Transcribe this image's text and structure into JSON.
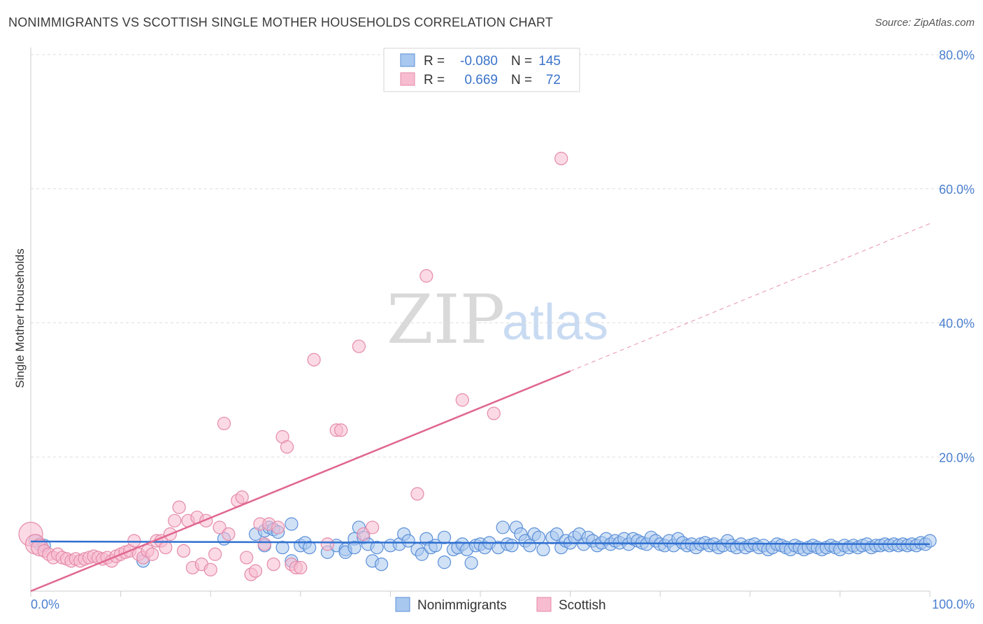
{
  "title": "NONIMMIGRANTS VS SCOTTISH SINGLE MOTHER HOUSEHOLDS CORRELATION CHART",
  "source": "Source: ZipAtlas.com",
  "watermark": {
    "zip": "ZIP",
    "atlas": "atlas"
  },
  "legend": {
    "rows": [
      {
        "r_label": "R =",
        "r_value": "-0.080",
        "n_label": "N =",
        "n_value": "145"
      },
      {
        "r_label": "R =",
        "r_value": "0.669",
        "n_label": "N =",
        "n_value": "72"
      }
    ]
  },
  "colors": {
    "blue_fill": "#a9c8ef",
    "blue_stroke": "#5b8fd8",
    "blue_line": "#2f6fd0",
    "pink_fill": "#f7bcd0",
    "pink_stroke": "#e58aa8",
    "pink_line": "#e0678f",
    "grid": "#dddddd",
    "axis": "#cccccc"
  },
  "chart_data": {
    "type": "scatter",
    "xlabel": "",
    "ylabel": "Single Mother Households",
    "xlim": [
      0,
      100
    ],
    "ylim": [
      0,
      80
    ],
    "x_tick_labels": [
      "0.0%",
      "100.0%"
    ],
    "y_tick_labels": [
      "20.0%",
      "40.0%",
      "60.0%",
      "80.0%"
    ],
    "y_tick_values": [
      20,
      40,
      60,
      80
    ],
    "series": [
      {
        "name": "Nonimmigrants",
        "r": -0.08,
        "n": 145,
        "trend": {
          "x0": 0,
          "y0": 7.4,
          "x1": 100,
          "y1": 7.0
        },
        "points": [
          [
            0.5,
            7.5
          ],
          [
            1,
            7.0
          ],
          [
            1.5,
            6.8
          ],
          [
            12.5,
            4.5
          ],
          [
            21.5,
            7.8
          ],
          [
            25,
            8.5
          ],
          [
            26,
            9.0
          ],
          [
            26.5,
            9.5
          ],
          [
            27,
            9.2
          ],
          [
            27.5,
            8.8
          ],
          [
            26,
            6.8
          ],
          [
            28,
            6.5
          ],
          [
            29,
            10.0
          ],
          [
            29,
            4.5
          ],
          [
            30,
            6.8
          ],
          [
            30.5,
            7.2
          ],
          [
            31,
            6.5
          ],
          [
            33,
            5.8
          ],
          [
            34,
            6.8
          ],
          [
            35,
            6.2
          ],
          [
            35,
            5.8
          ],
          [
            36,
            7.8
          ],
          [
            36.5,
            9.5
          ],
          [
            37,
            8.0
          ],
          [
            37.5,
            7.0
          ],
          [
            38,
            4.5
          ],
          [
            38.5,
            6.5
          ],
          [
            39,
            4.0
          ],
          [
            40,
            6.8
          ],
          [
            41,
            7.0
          ],
          [
            41.5,
            8.5
          ],
          [
            42,
            7.5
          ],
          [
            43,
            6.2
          ],
          [
            43.5,
            5.5
          ],
          [
            44,
            7.8
          ],
          [
            44.5,
            6.5
          ],
          [
            45,
            6.8
          ],
          [
            46,
            8.0
          ],
          [
            46,
            4.3
          ],
          [
            47,
            6.2
          ],
          [
            47.5,
            6.5
          ],
          [
            48,
            7.0
          ],
          [
            48.5,
            6.2
          ],
          [
            49,
            4.2
          ],
          [
            49.5,
            6.8
          ],
          [
            50,
            7.0
          ],
          [
            50.5,
            6.5
          ],
          [
            51,
            7.2
          ],
          [
            52,
            6.5
          ],
          [
            52.5,
            9.5
          ],
          [
            53,
            7.0
          ],
          [
            53.5,
            6.8
          ],
          [
            54,
            9.5
          ],
          [
            54.5,
            8.5
          ],
          [
            55,
            7.5
          ],
          [
            55.5,
            6.8
          ],
          [
            56,
            8.5
          ],
          [
            56.5,
            8.0
          ],
          [
            57,
            6.2
          ],
          [
            58,
            8.0
          ],
          [
            58.5,
            8.5
          ],
          [
            59,
            6.5
          ],
          [
            59.5,
            7.5
          ],
          [
            60,
            7.2
          ],
          [
            60.5,
            8.0
          ],
          [
            61,
            8.5
          ],
          [
            61.5,
            7.0
          ],
          [
            62,
            8.0
          ],
          [
            62.5,
            7.5
          ],
          [
            63,
            6.8
          ],
          [
            63.5,
            7.2
          ],
          [
            64,
            7.8
          ],
          [
            64.5,
            7.0
          ],
          [
            65,
            7.5
          ],
          [
            65.5,
            7.2
          ],
          [
            66,
            7.8
          ],
          [
            66.5,
            7.0
          ],
          [
            67,
            7.8
          ],
          [
            67.5,
            7.5
          ],
          [
            68,
            7.2
          ],
          [
            68.5,
            7.0
          ],
          [
            69,
            8.0
          ],
          [
            69.5,
            7.5
          ],
          [
            70,
            7.0
          ],
          [
            70.5,
            6.8
          ],
          [
            71,
            7.5
          ],
          [
            71.5,
            6.8
          ],
          [
            72,
            7.8
          ],
          [
            72.5,
            7.2
          ],
          [
            73,
            6.8
          ],
          [
            73.5,
            7.0
          ],
          [
            74,
            6.5
          ],
          [
            74.5,
            7.0
          ],
          [
            75,
            7.2
          ],
          [
            75.5,
            6.8
          ],
          [
            76,
            7.0
          ],
          [
            76.5,
            6.5
          ],
          [
            77,
            6.8
          ],
          [
            77.5,
            7.5
          ],
          [
            78,
            6.8
          ],
          [
            78.5,
            6.5
          ],
          [
            79,
            7.0
          ],
          [
            79.5,
            6.5
          ],
          [
            80,
            6.8
          ],
          [
            80.5,
            7.0
          ],
          [
            81,
            6.5
          ],
          [
            81.5,
            6.8
          ],
          [
            82,
            6.2
          ],
          [
            82.5,
            6.5
          ],
          [
            83,
            7.0
          ],
          [
            83.5,
            6.8
          ],
          [
            84,
            6.5
          ],
          [
            84.5,
            6.2
          ],
          [
            85,
            6.8
          ],
          [
            85.5,
            6.5
          ],
          [
            86,
            6.2
          ],
          [
            86.5,
            6.5
          ],
          [
            87,
            6.8
          ],
          [
            87.5,
            6.5
          ],
          [
            88,
            6.2
          ],
          [
            88.5,
            6.5
          ],
          [
            89,
            6.8
          ],
          [
            89.5,
            6.5
          ],
          [
            90,
            6.2
          ],
          [
            90.5,
            6.8
          ],
          [
            91,
            6.5
          ],
          [
            91.5,
            6.8
          ],
          [
            92,
            6.5
          ],
          [
            92.5,
            6.8
          ],
          [
            93,
            7.0
          ],
          [
            93.5,
            6.5
          ],
          [
            94,
            6.8
          ],
          [
            94.5,
            6.8
          ],
          [
            95,
            7.0
          ],
          [
            95.5,
            6.8
          ],
          [
            96,
            7.0
          ],
          [
            96.5,
            6.8
          ],
          [
            97,
            7.0
          ],
          [
            97.5,
            6.8
          ],
          [
            98,
            7.0
          ],
          [
            98.5,
            6.8
          ],
          [
            99,
            7.2
          ],
          [
            99.5,
            7.0
          ],
          [
            100,
            7.5
          ],
          [
            36,
            6.5
          ]
        ]
      },
      {
        "name": "Scottish",
        "r": 0.669,
        "n": 72,
        "trend": {
          "x0": 0,
          "y0": 0.0,
          "x1": 60,
          "y1": 32.8
        },
        "trend_dashed": {
          "x0": 60,
          "y0": 32.8,
          "x1": 100,
          "y1": 54.8
        },
        "points": [
          [
            0,
            8.5
          ],
          [
            0.5,
            7.0
          ],
          [
            1,
            6.5
          ],
          [
            1.5,
            6.0
          ],
          [
            2,
            5.5
          ],
          [
            2.5,
            5.0
          ],
          [
            3,
            5.5
          ],
          [
            3.5,
            5.0
          ],
          [
            4,
            4.8
          ],
          [
            4.5,
            4.5
          ],
          [
            5,
            4.8
          ],
          [
            5.5,
            4.5
          ],
          [
            6,
            4.8
          ],
          [
            6.5,
            5.0
          ],
          [
            7,
            5.2
          ],
          [
            7.5,
            5.0
          ],
          [
            8,
            4.8
          ],
          [
            8.5,
            5.0
          ],
          [
            9,
            4.5
          ],
          [
            9.5,
            5.2
          ],
          [
            10,
            5.5
          ],
          [
            10.5,
            5.8
          ],
          [
            11,
            6.0
          ],
          [
            11.5,
            7.5
          ],
          [
            12,
            5.5
          ],
          [
            12.5,
            5.0
          ],
          [
            13,
            6.0
          ],
          [
            13.5,
            5.5
          ],
          [
            14,
            7.5
          ],
          [
            14.5,
            7.5
          ],
          [
            15,
            6.5
          ],
          [
            15.5,
            8.5
          ],
          [
            16,
            10.5
          ],
          [
            16.5,
            12.5
          ],
          [
            17,
            6.0
          ],
          [
            17.5,
            10.5
          ],
          [
            18,
            3.5
          ],
          [
            18.5,
            11.0
          ],
          [
            19,
            4.0
          ],
          [
            19.5,
            10.5
          ],
          [
            20,
            3.2
          ],
          [
            20.5,
            5.5
          ],
          [
            21,
            9.5
          ],
          [
            21.5,
            25.0
          ],
          [
            22,
            8.5
          ],
          [
            23,
            13.5
          ],
          [
            23.5,
            14.0
          ],
          [
            24,
            5.0
          ],
          [
            24.5,
            2.5
          ],
          [
            25,
            3.0
          ],
          [
            25.5,
            10.0
          ],
          [
            26,
            7.0
          ],
          [
            26.5,
            10.0
          ],
          [
            27,
            4.0
          ],
          [
            27.5,
            9.5
          ],
          [
            28,
            23.0
          ],
          [
            28.5,
            21.5
          ],
          [
            29,
            4.0
          ],
          [
            29.5,
            3.5
          ],
          [
            30,
            3.5
          ],
          [
            31.5,
            34.5
          ],
          [
            33,
            7.0
          ],
          [
            34,
            24.0
          ],
          [
            34.5,
            24.0
          ],
          [
            36.5,
            36.5
          ],
          [
            37,
            8.5
          ],
          [
            38,
            9.5
          ],
          [
            43,
            14.5
          ],
          [
            44,
            47.0
          ],
          [
            48,
            28.5
          ],
          [
            51.5,
            26.5
          ],
          [
            59,
            64.5
          ]
        ]
      }
    ]
  },
  "bottom_legend": [
    "Nonimmigrants",
    "Scottish"
  ]
}
